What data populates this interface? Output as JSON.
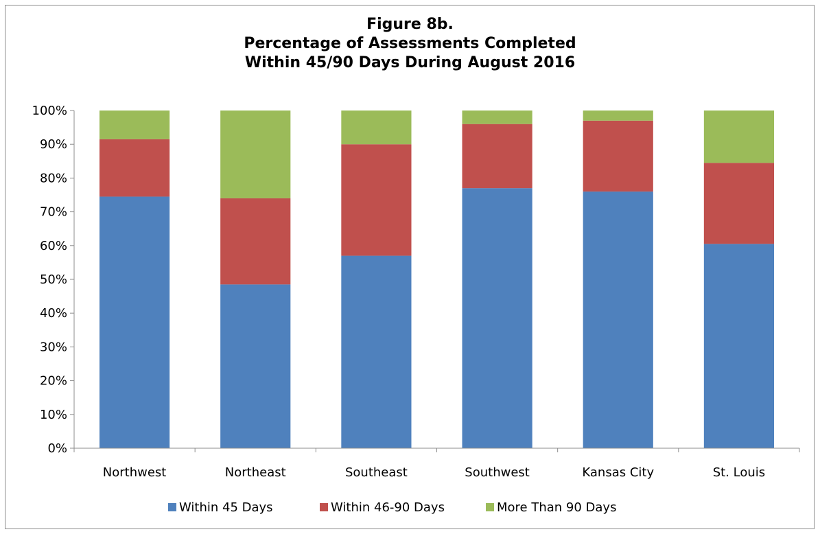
{
  "chart_data": {
    "type": "bar",
    "stacked": true,
    "title_lines": [
      "Figure 8b.",
      "Percentage of Assessments Completed",
      "Within 45/90 Days During August 2016"
    ],
    "categories": [
      "Northwest",
      "Northeast",
      "Southeast",
      "Southwest",
      "Kansas City",
      "St. Louis"
    ],
    "series": [
      {
        "name": "Within 45 Days",
        "color": "#4f81bd",
        "values": [
          74.5,
          48.5,
          57.0,
          77.0,
          76.0,
          60.5
        ]
      },
      {
        "name": "Within 46-90 Days",
        "color": "#c0504d",
        "values": [
          17.0,
          25.5,
          33.0,
          19.0,
          21.0,
          24.0
        ]
      },
      {
        "name": "More Than 90 Days",
        "color": "#9bbb59",
        "values": [
          8.5,
          26.0,
          10.0,
          4.0,
          3.0,
          15.5
        ]
      }
    ],
    "yticks": [
      "0%",
      "10%",
      "20%",
      "30%",
      "40%",
      "50%",
      "60%",
      "70%",
      "80%",
      "90%",
      "100%"
    ],
    "ylim": [
      0,
      100
    ],
    "grid": false,
    "legend_position": "bottom"
  }
}
